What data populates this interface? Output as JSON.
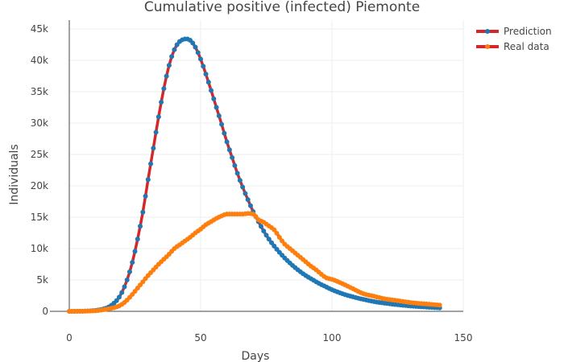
{
  "chart_data": {
    "type": "line",
    "title": "Cumulative positive (infected) Piemonte",
    "xlabel": "Days",
    "ylabel": "Individuals",
    "xlim": [
      0,
      150
    ],
    "ylim": [
      0,
      45000
    ],
    "x_ticks": [
      0,
      50,
      100,
      150
    ],
    "x_tick_labels": [
      "0",
      "50",
      "100",
      "150"
    ],
    "y_ticks": [
      0,
      5000,
      10000,
      15000,
      20000,
      25000,
      30000,
      35000,
      40000,
      45000
    ],
    "y_tick_labels": [
      "0",
      "5k",
      "10k",
      "15k",
      "20k",
      "25k",
      "30k",
      "35k",
      "40k",
      "45k"
    ],
    "grid": true,
    "legend_position": "top-right",
    "series": [
      {
        "name": "Prediction",
        "line_color": "#d62728",
        "marker_color": "#1f77b4",
        "x": [
          0,
          5,
          10,
          14,
          18,
          20,
          22,
          24,
          26,
          28,
          30,
          32,
          34,
          36,
          38,
          40,
          42,
          44,
          45,
          46,
          48,
          50,
          52,
          54,
          56,
          58,
          60,
          62,
          64,
          66,
          68,
          70,
          72,
          74,
          76,
          78,
          80,
          82,
          84,
          86,
          88,
          90,
          92,
          94,
          96,
          98,
          100,
          104,
          108,
          112,
          116,
          120,
          125,
          130,
          135,
          141
        ],
        "values": [
          0,
          20,
          150,
          500,
          1700,
          3000,
          5000,
          7800,
          11500,
          15800,
          21000,
          26000,
          31000,
          35500,
          39200,
          41700,
          43000,
          43400,
          43400,
          43200,
          42100,
          40200,
          37800,
          35200,
          32500,
          29800,
          27000,
          24500,
          22000,
          19800,
          17800,
          15900,
          14300,
          12800,
          11500,
          10400,
          9400,
          8500,
          7700,
          6950,
          6300,
          5700,
          5200,
          4700,
          4250,
          3850,
          3450,
          2800,
          2300,
          1900,
          1550,
          1300,
          1050,
          850,
          700,
          550
        ]
      },
      {
        "name": "Real data",
        "line_color": "#d62728",
        "marker_color": "#ff7f0e",
        "x": [
          0,
          5,
          10,
          15,
          18,
          20,
          22,
          24,
          26,
          28,
          30,
          32,
          34,
          36,
          38,
          40,
          42,
          44,
          46,
          48,
          50,
          52,
          54,
          56,
          58,
          60,
          62,
          64,
          66,
          68,
          70,
          72,
          74,
          76,
          78,
          80,
          82,
          84,
          86,
          88,
          90,
          92,
          94,
          96,
          98,
          100,
          104,
          108,
          112,
          116,
          120,
          125,
          130,
          135,
          141
        ],
        "values": [
          0,
          20,
          100,
          400,
          700,
          1100,
          1800,
          2700,
          3700,
          4700,
          5700,
          6600,
          7500,
          8300,
          9100,
          10000,
          10600,
          11200,
          11800,
          12500,
          13100,
          13800,
          14300,
          14800,
          15200,
          15500,
          15500,
          15500,
          15500,
          15600,
          15500,
          14600,
          14200,
          13600,
          13000,
          11800,
          10700,
          10000,
          9300,
          8600,
          7900,
          7200,
          6600,
          5900,
          5300,
          5100,
          4400,
          3600,
          2800,
          2400,
          2000,
          1700,
          1400,
          1200,
          1000
        ]
      }
    ]
  }
}
